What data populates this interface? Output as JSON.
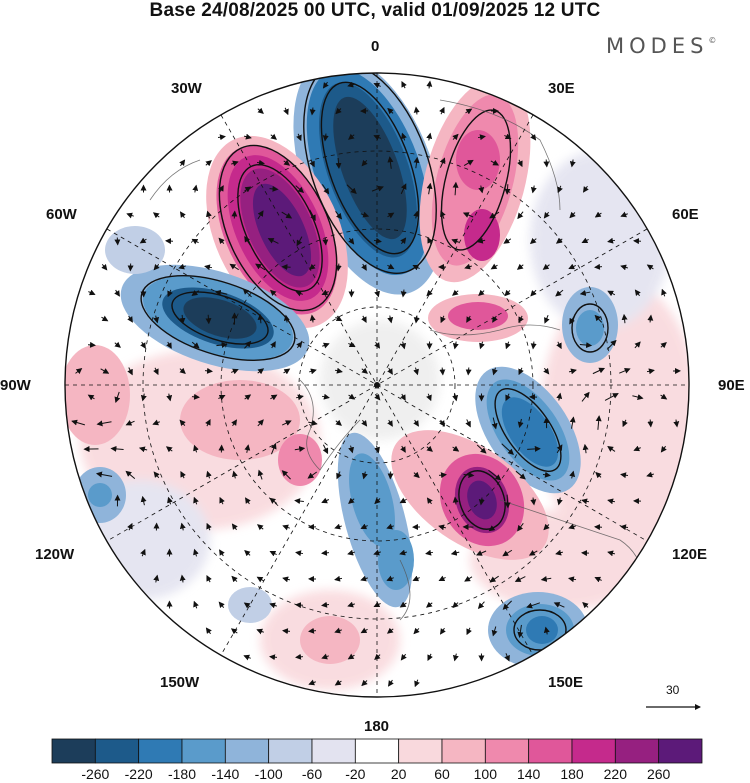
{
  "title": "Base 24/08/2025 00 UTC, valid 01/09/2025 12 UTC",
  "brand": "MODES",
  "brand_mark": "©",
  "longitude_labels": {
    "lon_0": "0",
    "lon_30e": "30E",
    "lon_60e": "60E",
    "lon_90e": "90E",
    "lon_120e": "120E",
    "lon_150e": "150E",
    "lon_180": "180",
    "lon_150w": "150W",
    "lon_120w": "120W",
    "lon_90w": "90W",
    "lon_60w": "60W",
    "lon_30w": "30W"
  },
  "reference_vector": {
    "label": "30"
  },
  "colorbar": {
    "colors": [
      "#1c3d5a",
      "#1d5a8a",
      "#2f7ab4",
      "#5a9bcb",
      "#8fb4da",
      "#c1cfe6",
      "#e3e3f0",
      "#ffffff",
      "#f9d9dd",
      "#f5b6c2",
      "#ef89ad",
      "#e0579a",
      "#c52a8c",
      "#962080",
      "#5c1a79"
    ],
    "tick_labels": [
      "-260",
      "-220",
      "-180",
      "-140",
      "-100",
      "-60",
      "-20",
      "20",
      "60",
      "100",
      "140",
      "180",
      "220",
      "260"
    ]
  },
  "anomalies": [
    {
      "name": "neg-anomaly-n",
      "value": -260
    },
    {
      "name": "pos-anomaly-nw",
      "value": 260
    },
    {
      "name": "neg-anomaly-w",
      "value": -240
    },
    {
      "name": "pos-anomaly-ne",
      "value": 200
    },
    {
      "name": "pos-anomaly-e",
      "value": 180
    },
    {
      "name": "neg-anomaly-e",
      "value": -160
    },
    {
      "name": "pos-anomaly-se",
      "value": 230
    },
    {
      "name": "neg-anomaly-s",
      "value": -160
    },
    {
      "name": "neg-anomaly-sse",
      "value": -140
    },
    {
      "name": "pos-anomaly-sw",
      "value": 100
    },
    {
      "name": "neg-anomaly-far-w",
      "value": -100
    },
    {
      "name": "pos-anomaly-far-w",
      "value": 80
    }
  ]
}
